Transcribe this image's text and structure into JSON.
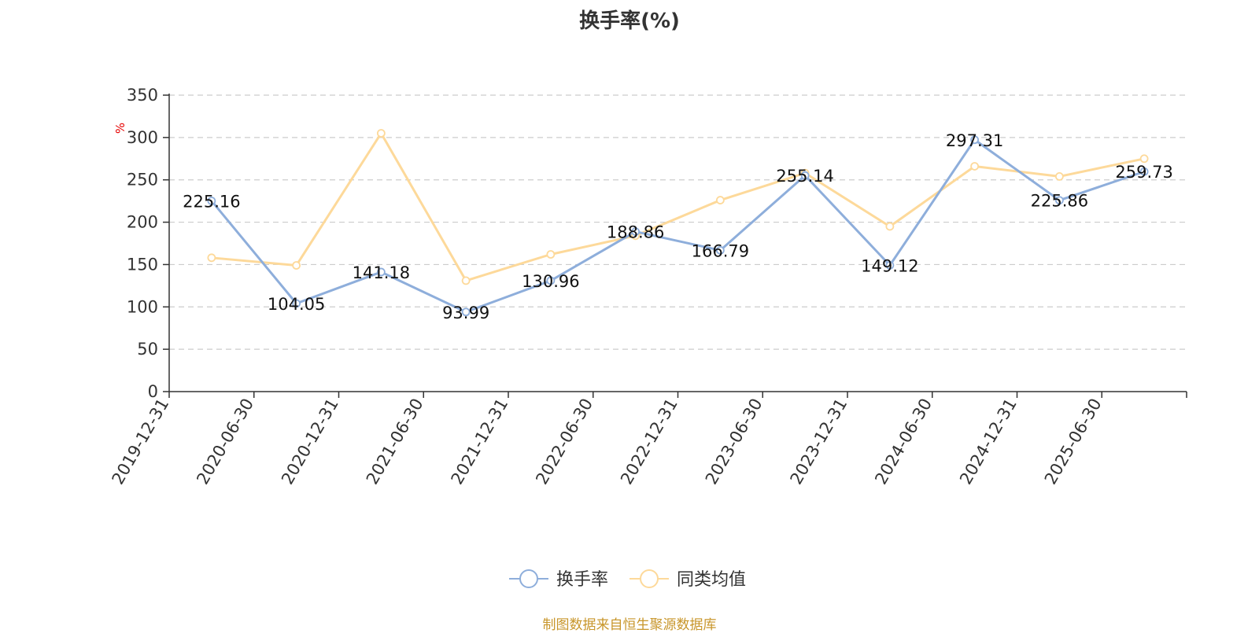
{
  "title": "换手率(%)",
  "footer": "制图数据来自恒生聚源数据库",
  "colors": {
    "series_primary": "#8eaedb",
    "series_secondary": "#fdd99a",
    "axis": "#333333",
    "grid": "#cccccc",
    "unit": "#e60000",
    "footer": "#c8962b"
  },
  "chart_data": {
    "type": "line",
    "title": "换手率(%)",
    "ylabel": "%",
    "xlabel": "",
    "ylim": [
      0,
      350
    ],
    "yticks": [
      0,
      50,
      100,
      150,
      200,
      250,
      300,
      350
    ],
    "grid": true,
    "legend_position": "bottom-center",
    "categories": [
      "2019-12-31",
      "2020-06-30",
      "2020-12-31",
      "2021-06-30",
      "2021-12-31",
      "2022-06-30",
      "2022-12-31",
      "2023-06-30",
      "2023-12-31",
      "2024-06-30",
      "2024-12-31",
      "2025-06-30"
    ],
    "series": [
      {
        "name": "换手率",
        "values": [
          225.16,
          104.05,
          141.18,
          93.99,
          130.96,
          188.86,
          166.79,
          255.14,
          149.12,
          297.31,
          225.86,
          259.73
        ],
        "labels": [
          "225.16",
          "104.05",
          "141.18",
          "93.99",
          "130.96",
          "188.86",
          "166.79",
          "255.14",
          "149.12",
          "297.31",
          "225.86",
          "259.73"
        ]
      },
      {
        "name": "同类均值",
        "values": [
          158,
          149,
          305,
          131,
          162,
          184,
          226,
          258,
          195,
          266,
          254,
          275
        ]
      }
    ]
  }
}
